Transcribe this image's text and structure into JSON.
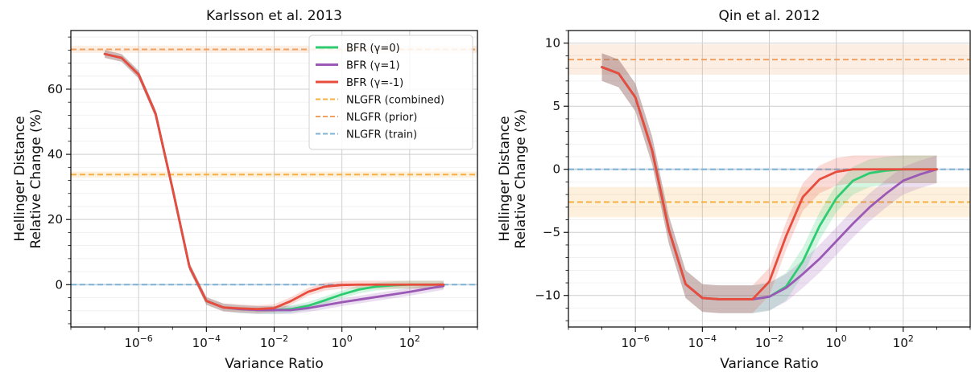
{
  "chart_data": [
    {
      "type": "line",
      "title": "Karlsson et al. 2013",
      "xlabel": "Variance Ratio",
      "ylabel_lines": [
        "Hellinger Distance",
        "Relative Change (%)"
      ],
      "xscale": "log",
      "xlim": [
        1e-08,
        10000.0
      ],
      "ylim": [
        -13,
        78
      ],
      "x_ticks": [
        -6,
        -4,
        -2,
        0,
        2
      ],
      "x_tick_labels": [
        "10^-6",
        "10^-4",
        "10^-2",
        "10^0",
        "10^2"
      ],
      "y_ticks": [
        0,
        20,
        40,
        60
      ],
      "y_tick_labels": [
        "0",
        "20",
        "40",
        "60"
      ],
      "grid": true,
      "legend_position": "top-right",
      "x": [
        1e-07,
        3.16e-07,
        1e-06,
        3.16e-06,
        1e-05,
        3.16e-05,
        0.0001,
        0.000316,
        0.001,
        0.00316,
        0.01,
        0.0316,
        0.1,
        0.316,
        1,
        3.16,
        10,
        31.6,
        100,
        316,
        1000
      ],
      "series": [
        {
          "name": "BFR (γ=0)",
          "color": "#2ecc71",
          "band": 1.2,
          "values": [
            70.8,
            69.6,
            64.5,
            52.5,
            29.5,
            5.5,
            -5,
            -7,
            -7.5,
            -7.8,
            -7.8,
            -7.5,
            -6.5,
            -4.8,
            -3,
            -1.5,
            -0.6,
            -0.2,
            0,
            0,
            0
          ]
        },
        {
          "name": "BFR (γ=1)",
          "color": "#9b59b6",
          "band": 1.2,
          "values": [
            70.8,
            69.6,
            64.5,
            52.5,
            29.5,
            5.5,
            -5,
            -7,
            -7.5,
            -7.8,
            -7.8,
            -7.8,
            -7.2,
            -6.3,
            -5.4,
            -4.6,
            -3.8,
            -3,
            -2.2,
            -1.3,
            -0.4
          ]
        },
        {
          "name": "BFR (γ=-1)",
          "color": "#e74c3c",
          "band": 1.2,
          "values": [
            70.8,
            69.6,
            64.5,
            52.5,
            29.5,
            5.5,
            -5,
            -7,
            -7.3,
            -7.5,
            -7.2,
            -5,
            -2.2,
            -0.6,
            -0.1,
            0,
            0,
            0,
            0,
            0,
            0
          ]
        }
      ],
      "hlines": [
        {
          "name": "NLGFR (combined)",
          "value": 33.8,
          "color": "#f5b041",
          "band": 0.9
        },
        {
          "name": "NLGFR (prior)",
          "value": 72.2,
          "color": "#f0a060",
          "band": 1.1
        },
        {
          "name": "NLGFR (train)",
          "value": 0,
          "color": "#7fb3d5",
          "band": 0.3
        }
      ]
    },
    {
      "type": "line",
      "title": "Qin et al. 2012",
      "xlabel": "Variance Ratio",
      "ylabel_lines": [
        "Hellinger Distance",
        "Relative Change (%)"
      ],
      "xscale": "log",
      "xlim": [
        1e-08,
        10000.0
      ],
      "ylim": [
        -12.5,
        11
      ],
      "x_ticks": [
        -6,
        -4,
        -2,
        0,
        2
      ],
      "x_tick_labels": [
        "10^-6",
        "10^-4",
        "10^-2",
        "10^0",
        "10^2"
      ],
      "y_ticks": [
        -10,
        -5,
        0,
        5,
        10
      ],
      "y_tick_labels": [
        "−10",
        "−5",
        "0",
        "5",
        "10"
      ],
      "grid": true,
      "legend_position": "none",
      "x": [
        1e-07,
        3.16e-07,
        1e-06,
        3.16e-06,
        1e-05,
        3.16e-05,
        0.0001,
        0.000316,
        0.001,
        0.00316,
        0.01,
        0.0316,
        0.1,
        0.316,
        1,
        3.16,
        10,
        31.6,
        100,
        316,
        1000
      ],
      "series": [
        {
          "name": "BFR (γ=0)",
          "color": "#2ecc71",
          "band": 1.1,
          "values": [
            8.1,
            7.6,
            5.7,
            1.5,
            -4.8,
            -9.1,
            -10.2,
            -10.3,
            -10.3,
            -10.3,
            -10.1,
            -9.3,
            -7.3,
            -4.5,
            -2.3,
            -0.9,
            -0.3,
            -0.1,
            0,
            0,
            0
          ]
        },
        {
          "name": "BFR (γ=1)",
          "color": "#9b59b6",
          "band": 1.1,
          "values": [
            8.1,
            7.6,
            5.7,
            1.5,
            -4.8,
            -9.1,
            -10.2,
            -10.3,
            -10.3,
            -10.3,
            -10.1,
            -9.4,
            -8.3,
            -7.1,
            -5.7,
            -4.3,
            -3,
            -1.9,
            -0.9,
            -0.4,
            0
          ]
        },
        {
          "name": "BFR (γ=-1)",
          "color": "#e74c3c",
          "band": 1.1,
          "values": [
            8.1,
            7.6,
            5.7,
            1.5,
            -4.8,
            -9.1,
            -10.2,
            -10.3,
            -10.3,
            -10.3,
            -8.9,
            -5.3,
            -2.2,
            -0.8,
            -0.2,
            0,
            0,
            0,
            0,
            0,
            0
          ]
        }
      ],
      "hlines": [
        {
          "name": "NLGFR (combined)",
          "value": -2.6,
          "color": "#f5b041",
          "band": 1.2
        },
        {
          "name": "NLGFR (prior)",
          "value": 8.7,
          "color": "#f0a060",
          "band": 1.2
        },
        {
          "name": "NLGFR (train)",
          "value": 0,
          "color": "#7fb3d5",
          "band": 0.1
        }
      ]
    }
  ]
}
